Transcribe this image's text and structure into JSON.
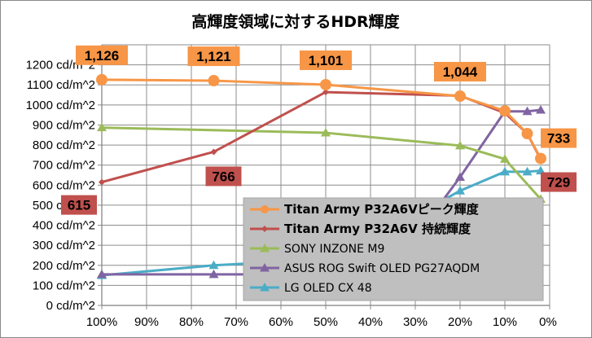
{
  "chart_data": {
    "type": "line",
    "title": "高輝度領域に対するHDR輝度",
    "xlabel": "",
    "ylabel": "",
    "x": [
      100,
      75,
      50,
      20,
      10,
      5,
      2
    ],
    "x_tick_labels": [
      "100%",
      "90%",
      "80%",
      "70%",
      "60%",
      "50%",
      "40%",
      "30%",
      "20%",
      "10%",
      "0%"
    ],
    "y_tick_labels": [
      "0 cd/m^2",
      "100 cd/m^2",
      "200 cd/m^2",
      "300 cd/m^2",
      "400 cd/m^2",
      "500 cd/m^2",
      "600 cd/m^2",
      "700 cd/m^2",
      "800 cd/m^2",
      "900 cd/m^2",
      "1000 cd/m^2",
      "1100 cd/m^2",
      "1200 cd/m^2"
    ],
    "xlim": [
      100,
      0
    ],
    "ylim": [
      0,
      1300
    ],
    "grid": true,
    "legend_position": "bottom-right",
    "series": [
      {
        "name": "Titan Army P32A6Vピーク輝度",
        "color": "#f79646",
        "marker": "circle",
        "bold": true,
        "x": [
          100,
          75,
          50,
          20,
          10,
          5,
          2
        ],
        "values": [
          1126,
          1121,
          1101,
          1044,
          970,
          857,
          733
        ],
        "data_labels": [
          "1,126",
          "1,121",
          "1,101",
          "1,044",
          "",
          "",
          "733"
        ],
        "label_bg": "#f79646"
      },
      {
        "name": "Titan Army P32A6V 持続輝度",
        "color": "#c0504d",
        "marker": "diamond",
        "bold": true,
        "x": [
          100,
          75,
          50,
          20,
          10,
          5,
          2
        ],
        "values": [
          615,
          766,
          1064,
          1046,
          960,
          857,
          729
        ],
        "data_labels": [
          "615",
          "766",
          "",
          "",
          "",
          "",
          "729"
        ],
        "label_bg": "#c0504d"
      },
      {
        "name": "SONY INZONE M9",
        "color": "#9bbb59",
        "marker": "triangle",
        "bold": false,
        "x": [
          100,
          50,
          20,
          10,
          2
        ],
        "values": [
          887,
          861,
          797,
          730,
          530
        ],
        "data_labels": []
      },
      {
        "name": "ASUS ROG Swift OLED PG27AQDM",
        "color": "#8064a2",
        "marker": "triangle",
        "bold": false,
        "x": [
          100,
          75,
          50,
          25,
          20,
          10,
          5,
          2
        ],
        "values": [
          155,
          155,
          155,
          490,
          640,
          968,
          968,
          975
        ],
        "data_labels": []
      },
      {
        "name": "LG OLED CX 48",
        "color": "#4bacc6",
        "marker": "triangle",
        "bold": false,
        "x": [
          100,
          75,
          50,
          25,
          20,
          10,
          5,
          2
        ],
        "values": [
          150,
          200,
          230,
          510,
          572,
          667,
          667,
          672
        ],
        "data_labels": []
      }
    ]
  }
}
